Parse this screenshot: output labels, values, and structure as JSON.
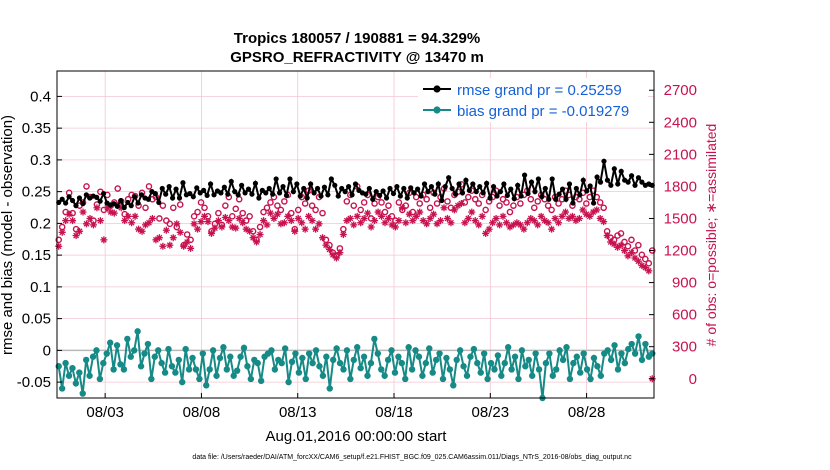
{
  "chart_data": {
    "type": "line",
    "title": "Tropics 180057 / 190881 = 94.329%",
    "subtitle": "GPSRO_REFRACTIVITY @ 13470 m",
    "xlabel": "Aug.01,2016 00:00:00 start",
    "ylabel": "rmse and bias (model - observation)",
    "y2label": "# of obs: o=possible; ∗=assimilated",
    "footnote": "data file: /Users/raeder/DAI/ATM_forcXX/CAM6_setup/f.e21.FHIST_BGC.f09_025.CAM6assim.011/Diags_NTrS_2016-08/obs_diag_output.nc",
    "xlim": [
      0.5,
      31.5
    ],
    "ylim": [
      -0.075,
      0.44
    ],
    "y2lim": [
      -180,
      2880
    ],
    "x_ticks": [
      3,
      8,
      13,
      18,
      23,
      28
    ],
    "x_tick_labels": [
      "08/03",
      "08/08",
      "08/13",
      "08/18",
      "08/23",
      "08/28"
    ],
    "y_ticks": [
      -0.05,
      0,
      0.05,
      0.1,
      0.15,
      0.2,
      0.25,
      0.3,
      0.35,
      0.4
    ],
    "y_tick_labels": [
      "-0.05",
      "0",
      "0.05",
      "0.1",
      "0.15",
      "0.2",
      "0.25",
      "0.3",
      "0.35",
      "0.4"
    ],
    "y2_ticks": [
      0,
      300,
      600,
      900,
      1200,
      1500,
      1800,
      2100,
      2400,
      2700
    ],
    "y2_tick_labels": [
      "0",
      "300",
      "600",
      "900",
      "1200",
      "1500",
      "1800",
      "2100",
      "2400",
      "2700"
    ],
    "grid": true,
    "legend_position": "top-right",
    "colors": {
      "rmse": "#000000",
      "bias": "#168a86",
      "obs": "#c8124f",
      "legend_text": "#1560d8",
      "grid": "#f3c6d2"
    },
    "series": [
      {
        "name": "rmse grand pr = 0.25259",
        "axis": "left",
        "values": [
          0.233,
          0.238,
          0.232,
          0.242,
          0.236,
          0.228,
          0.24,
          0.231,
          0.245,
          0.24,
          0.243,
          0.241,
          0.235,
          0.247,
          0.232,
          0.229,
          0.231,
          0.227,
          0.236,
          0.225,
          0.233,
          0.228,
          0.242,
          0.232,
          0.245,
          0.24,
          0.238,
          0.25,
          0.247,
          0.233,
          0.255,
          0.246,
          0.258,
          0.24,
          0.254,
          0.24,
          0.264,
          0.245,
          0.247,
          0.242,
          0.256,
          0.248,
          0.252,
          0.244,
          0.262,
          0.245,
          0.251,
          0.248,
          0.257,
          0.246,
          0.266,
          0.25,
          0.245,
          0.26,
          0.248,
          0.254,
          0.246,
          0.263,
          0.24,
          0.252,
          0.248,
          0.255,
          0.246,
          0.27,
          0.248,
          0.258,
          0.244,
          0.27,
          0.25,
          0.262,
          0.243,
          0.255,
          0.24,
          0.262,
          0.248,
          0.255,
          0.243,
          0.257,
          0.245,
          0.27,
          0.26,
          0.243,
          0.255,
          0.25,
          0.258,
          0.245,
          0.262,
          0.252,
          0.248,
          0.246,
          0.255,
          0.238,
          0.25,
          0.244,
          0.251,
          0.24,
          0.255,
          0.247,
          0.258,
          0.243,
          0.255,
          0.24,
          0.256,
          0.248,
          0.254,
          0.243,
          0.262,
          0.25,
          0.258,
          0.246,
          0.262,
          0.236,
          0.258,
          0.272,
          0.255,
          0.246,
          0.262,
          0.248,
          0.268,
          0.252,
          0.262,
          0.25,
          0.258,
          0.248,
          0.263,
          0.24,
          0.258,
          0.243,
          0.25,
          0.262,
          0.244,
          0.254,
          0.239,
          0.26,
          0.243,
          0.276,
          0.247,
          0.265,
          0.25,
          0.27,
          0.242,
          0.255,
          0.238,
          0.27,
          0.238,
          0.246,
          0.254,
          0.238,
          0.262,
          0.232,
          0.255,
          0.245,
          0.268,
          0.251,
          0.259,
          0.232,
          0.273,
          0.265,
          0.298,
          0.268,
          0.26,
          0.286,
          0.262,
          0.282,
          0.268,
          0.265,
          0.275,
          0.26,
          0.272,
          0.265,
          0.26,
          0.262,
          0.26
        ]
      },
      {
        "name": "bias grand pr = -0.019279",
        "axis": "left",
        "values": [
          -0.025,
          -0.06,
          -0.02,
          -0.04,
          -0.028,
          -0.052,
          -0.035,
          -0.068,
          -0.015,
          -0.04,
          -0.01,
          0.0,
          -0.045,
          -0.02,
          -0.005,
          0.012,
          -0.03,
          0.008,
          -0.022,
          -0.03,
          0.018,
          -0.01,
          0.0,
          0.03,
          -0.025,
          -0.005,
          0.01,
          -0.045,
          -0.01,
          0.0,
          -0.02,
          -0.035,
          0.002,
          -0.025,
          -0.035,
          -0.015,
          -0.05,
          0.002,
          -0.03,
          -0.012,
          -0.03,
          -0.045,
          -0.005,
          -0.055,
          -0.03,
          0.0,
          -0.04,
          -0.012,
          0.005,
          -0.03,
          -0.01,
          -0.04,
          -0.032,
          -0.01,
          0.004,
          -0.025,
          -0.045,
          -0.015,
          -0.02,
          -0.048,
          -0.01,
          -0.005,
          0.0,
          -0.03,
          -0.015,
          -0.02,
          0.003,
          -0.05,
          -0.018,
          -0.005,
          -0.035,
          -0.012,
          -0.045,
          -0.005,
          -0.02,
          0.0,
          -0.025,
          -0.04,
          -0.01,
          -0.06,
          -0.015,
          0.003,
          -0.02,
          -0.03,
          0.0,
          -0.045,
          -0.015,
          0.005,
          -0.028,
          -0.01,
          -0.04,
          -0.02,
          0.018,
          -0.005,
          -0.03,
          -0.04,
          -0.015,
          0.0,
          -0.035,
          -0.01,
          -0.02,
          -0.045,
          0.005,
          -0.03,
          0.0,
          -0.01,
          -0.04,
          -0.02,
          0.003,
          -0.035,
          -0.015,
          -0.005,
          -0.045,
          -0.012,
          -0.03,
          -0.055,
          -0.015,
          0.0,
          -0.025,
          -0.04,
          -0.01,
          0.002,
          -0.02,
          -0.035,
          -0.005,
          -0.045,
          -0.02,
          -0.03,
          -0.008,
          -0.04,
          -0.02,
          0.005,
          -0.03,
          -0.01,
          -0.045,
          0.0,
          -0.025,
          -0.015,
          -0.04,
          -0.005,
          -0.03,
          -0.075,
          -0.02,
          -0.005,
          -0.04,
          -0.03,
          0.0,
          -0.015,
          0.005,
          -0.045,
          -0.02,
          -0.01,
          -0.035,
          -0.005,
          -0.03,
          -0.045,
          -0.012,
          -0.025,
          -0.04,
          -0.005,
          0.0,
          -0.015,
          0.008,
          -0.03,
          -0.005,
          -0.02,
          0.002,
          0.01,
          -0.005,
          0.022,
          -0.015,
          0.01,
          -0.01,
          -0.005
        ]
      },
      {
        "name": "obs possible",
        "axis": "right",
        "marker": "o",
        "values": [
          1300,
          1420,
          1560,
          1740,
          1550,
          1400,
          1620,
          1650,
          1800,
          1700,
          1480,
          1630,
          1750,
          1580,
          1720,
          1620,
          1650,
          1780,
          1660,
          1540,
          1680,
          1720,
          1710,
          1620,
          1740,
          1600,
          1800,
          1680,
          1700,
          1500,
          1620,
          1480,
          1450,
          1600,
          1420,
          1630,
          1250,
          1350,
          1300,
          1520,
          1560,
          1650,
          1600,
          1520,
          1380,
          1450,
          1550,
          1440,
          1620,
          1700,
          1520,
          1590,
          1680,
          1550,
          1480,
          1520,
          1380,
          1300,
          1420,
          1560,
          1600,
          1650,
          1700,
          1620,
          1580,
          1660,
          1720,
          1550,
          1400,
          1580,
          1700,
          1640,
          1760,
          1620,
          1580,
          1700,
          1550,
          1300,
          1250,
          1180,
          1150,
          1220,
          1400,
          1660,
          1720,
          1620,
          1800,
          1580,
          1650,
          1720,
          1500,
          1640,
          1700,
          1650,
          1560,
          1620,
          1520,
          1480,
          1650,
          1580,
          1620,
          1740,
          1560,
          1700,
          1640,
          1720,
          1680,
          1600,
          1740,
          1640,
          1700,
          1780,
          1660,
          1600,
          1720,
          1750,
          1820,
          1650,
          1700,
          1760,
          1680,
          1640,
          1720,
          1580,
          1660,
          1700,
          1760,
          1620,
          1680,
          1650,
          1560,
          1620,
          1700,
          1640,
          1720,
          1760,
          1680,
          1600,
          1660,
          1720,
          1680,
          1620,
          1580,
          1700,
          1640,
          1680,
          1760,
          1720,
          1620,
          1700,
          1680,
          1740,
          1640,
          1700,
          1760,
          1700,
          1650,
          1600,
          1380,
          1320,
          1300,
          1340,
          1360,
          1280,
          1240,
          1300,
          1200,
          1250,
          1160,
          1120,
          1080,
          1200
        ]
      },
      {
        "name": "obs assimilated",
        "axis": "right",
        "marker": "*",
        "values": [
          1240,
          1370,
          1480,
          1540,
          1480,
          1340,
          1380,
          1560,
          1450,
          1500,
          1440,
          1600,
          1480,
          1300,
          1600,
          1560,
          1550,
          1620,
          1600,
          1480,
          1520,
          1460,
          1520,
          1400,
          1380,
          1440,
          1460,
          1500,
          1300,
          1320,
          1240,
          1390,
          1250,
          1320,
          1450,
          1370,
          1240,
          1280,
          1220,
          1450,
          1400,
          1470,
          1520,
          1470,
          1360,
          1410,
          1480,
          1420,
          1510,
          1480,
          1420,
          1410,
          1500,
          1460,
          1400,
          1380,
          1320,
          1280,
          1350,
          1480,
          1440,
          1550,
          1500,
          1540,
          1450,
          1460,
          1520,
          1480,
          1380,
          1500,
          1460,
          1400,
          1520,
          1480,
          1400,
          1450,
          1320,
          1250,
          1210,
          1160,
          1130,
          1180,
          1350,
          1480,
          1500,
          1440,
          1520,
          1460,
          1500,
          1550,
          1420,
          1480,
          1560,
          1520,
          1460,
          1500,
          1440,
          1420,
          1480,
          1600,
          1460,
          1540,
          1480,
          1520,
          1560,
          1480,
          1450,
          1500,
          1540,
          1450,
          1480,
          1600,
          1500,
          1460,
          1580,
          1620,
          1640,
          1460,
          1500,
          1560,
          1480,
          1440,
          1520,
          1360,
          1400,
          1460,
          1500,
          1440,
          1520,
          1460,
          1420,
          1440,
          1460,
          1440,
          1400,
          1460,
          1500,
          1480,
          1440,
          1520,
          1480,
          1460,
          1400,
          1500,
          1460,
          1520,
          1560,
          1500,
          1520,
          1480,
          1500,
          1580,
          1540,
          1520,
          1560,
          1580,
          1500,
          1470,
          1340,
          1280,
          1260,
          1230,
          1250,
          1200,
          1150,
          1180,
          1130,
          1100,
          1060,
          1040,
          1010,
          0
        ]
      }
    ]
  }
}
